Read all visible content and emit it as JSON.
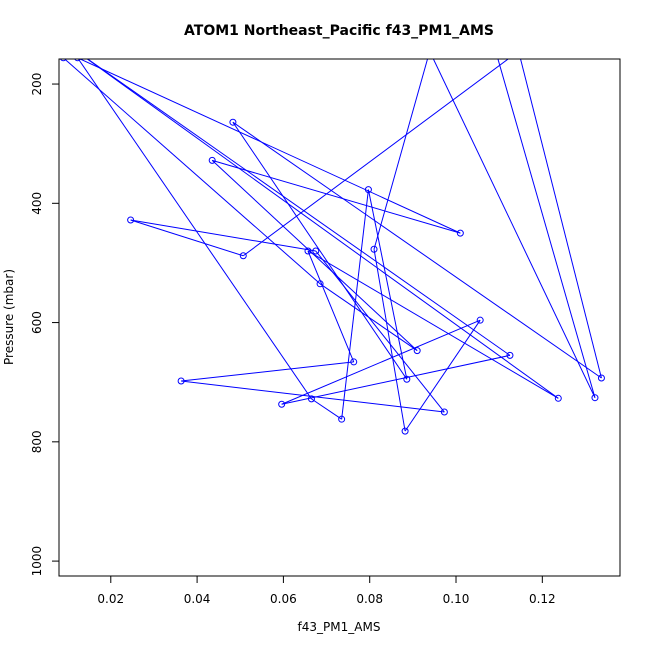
{
  "chart_data": {
    "type": "line",
    "title": "ATOM1 Northeast_Pacific f43_PM1_AMS",
    "xlabel": "f43_PM1_AMS",
    "ylabel": "Pressure (mbar)",
    "xlim": [
      0.008,
      0.138
    ],
    "ylim": [
      1025,
      158
    ],
    "y_reversed": true,
    "xticks": [
      0.02,
      0.04,
      0.06,
      0.08,
      0.1,
      0.12
    ],
    "xtick_labels": [
      "0.02",
      "0.04",
      "0.06",
      "0.08",
      "0.10",
      "0.12"
    ],
    "yticks": [
      200,
      400,
      600,
      800,
      1000
    ],
    "ytick_labels": [
      "200",
      "400",
      "600",
      "800",
      "1000"
    ],
    "grid": false,
    "legend": "none",
    "marker": "open-circle",
    "color": "#0000ff",
    "series": [
      {
        "x": [
          0.009,
          0.0685,
          0.091,
          0.0435,
          0.101,
          0.0123,
          0.0665,
          0.0735,
          0.0797,
          0.0886,
          0.0483,
          0.1337,
          0.1145,
          0.0507,
          0.0246,
          0.0675,
          0.0973,
          0.0363,
          0.0763,
          0.0657,
          0.1237,
          0.0111,
          0.1125,
          0.0596,
          0.1056,
          0.0882,
          0.081,
          0.0939,
          0.1322,
          0.1092
        ],
        "y": [
          156,
          535,
          647,
          328,
          450,
          156,
          728,
          762,
          377,
          695,
          264,
          693,
          145,
          488,
          428,
          480,
          750,
          698,
          666,
          480,
          727,
          140,
          655,
          737,
          596,
          782,
          477,
          145,
          726,
          145
        ]
      }
    ]
  }
}
